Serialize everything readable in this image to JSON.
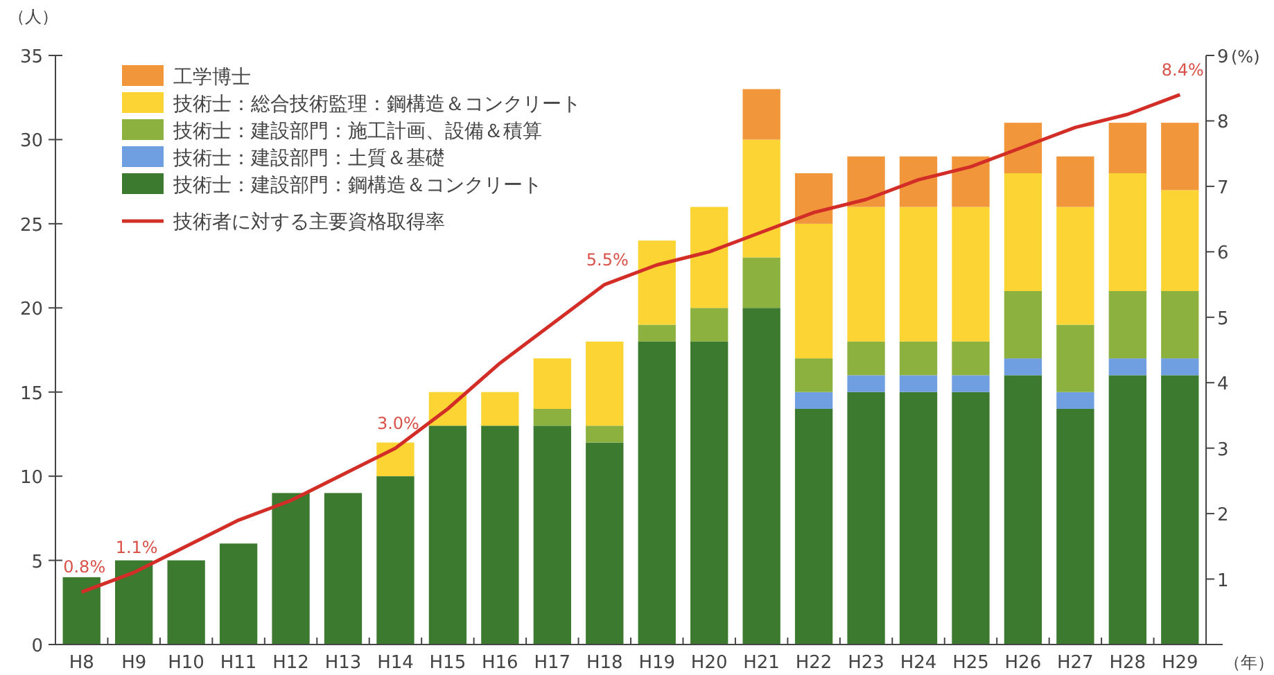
{
  "chart_data": {
    "type": "bar",
    "stacked": true,
    "categories": [
      "H8",
      "H9",
      "H10",
      "H11",
      "H12",
      "H13",
      "H14",
      "H15",
      "H16",
      "H17",
      "H18",
      "H19",
      "H20",
      "H21",
      "H22",
      "H23",
      "H24",
      "H25",
      "H26",
      "H27",
      "H28",
      "H29"
    ],
    "series": [
      {
        "name": "技術士：建設部門：鋼構造＆コンクリート",
        "color": "#3b7a2f",
        "values": [
          4,
          5,
          5,
          6,
          9,
          9,
          10,
          13,
          13,
          13,
          12,
          18,
          18,
          20,
          14,
          15,
          15,
          15,
          16,
          14,
          16,
          16
        ]
      },
      {
        "name": "技術士：建設部門：土質＆基礎",
        "color": "#6f9fe0",
        "values": [
          0,
          0,
          0,
          0,
          0,
          0,
          0,
          0,
          0,
          0,
          0,
          0,
          0,
          0,
          1,
          1,
          1,
          1,
          1,
          1,
          1,
          1
        ]
      },
      {
        "name": "技術士：建設部門：施工計画、設備＆積算",
        "color": "#8cb13f",
        "values": [
          0,
          0,
          0,
          0,
          0,
          0,
          0,
          0,
          0,
          1,
          1,
          1,
          2,
          3,
          2,
          2,
          2,
          2,
          4,
          4,
          4,
          4
        ]
      },
      {
        "name": "技術士：総合技術監理：鋼構造＆コンクリート",
        "color": "#fcd535",
        "values": [
          0,
          0,
          0,
          0,
          0,
          0,
          2,
          2,
          2,
          3,
          5,
          5,
          6,
          7,
          8,
          8,
          8,
          8,
          7,
          7,
          7,
          6
        ]
      },
      {
        "name": "工学博士",
        "color": "#f1963a",
        "values": [
          0,
          0,
          0,
          0,
          0,
          0,
          0,
          0,
          0,
          0,
          0,
          0,
          0,
          3,
          3,
          3,
          3,
          3,
          3,
          3,
          3,
          4
        ]
      },
      {
        "name": "技術者に対する主要資格取得率",
        "type": "line",
        "axis": "y2",
        "color": "#d22e27",
        "values": [
          0.8,
          1.1,
          1.5,
          1.9,
          2.2,
          2.6,
          3.0,
          3.6,
          4.3,
          4.9,
          5.5,
          5.8,
          6.0,
          6.3,
          6.6,
          6.8,
          7.1,
          7.3,
          7.6,
          7.9,
          8.1,
          8.4
        ],
        "value_labels": [
          "0.8%",
          "1.1%",
          null,
          null,
          null,
          null,
          "3.0%",
          null,
          null,
          null,
          "5.5%",
          null,
          null,
          null,
          null,
          null,
          null,
          null,
          null,
          null,
          null,
          "8.4%"
        ]
      }
    ],
    "ylabel": "（人）",
    "y2label": "(%)",
    "xlabel": "（年）",
    "ylim": [
      0,
      35
    ],
    "yticks": [
      0,
      5,
      10,
      15,
      20,
      25,
      30,
      35
    ],
    "y2lim": [
      0,
      9
    ],
    "y2ticks": [
      1,
      2,
      3,
      4,
      5,
      6,
      7,
      8,
      9
    ],
    "legend": "top left",
    "grid": false
  }
}
